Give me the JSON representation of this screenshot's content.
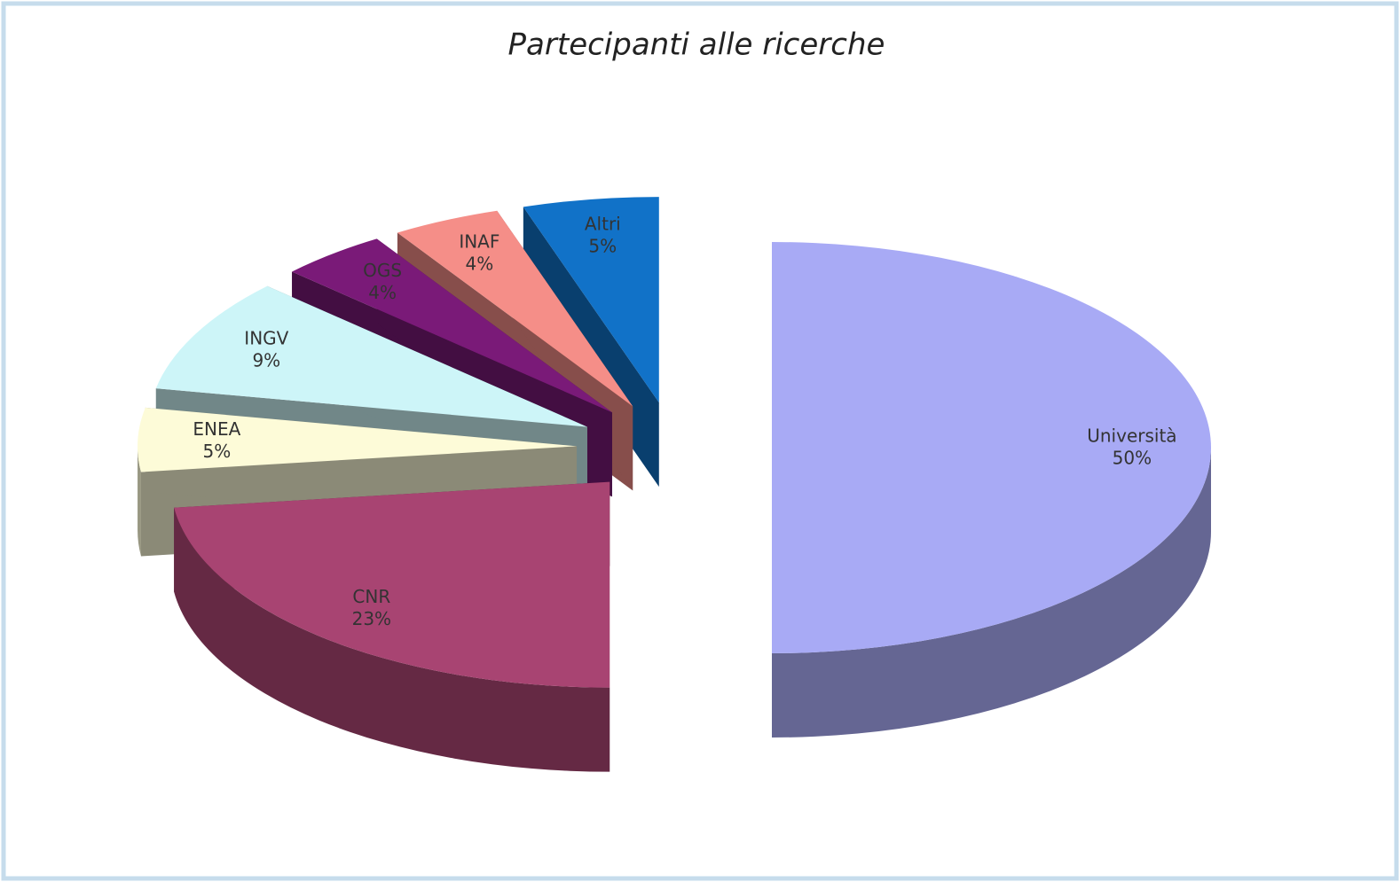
{
  "chart_data": {
    "type": "pie",
    "title": "Partecipanti alle ricerche",
    "categories": [
      "Università",
      "CNR",
      "ENEA",
      "INGV",
      "OGS",
      "INAF",
      "Altri"
    ],
    "values": [
      50,
      23,
      5,
      9,
      4,
      4,
      5
    ],
    "value_labels": [
      "50%",
      "23%",
      "5%",
      "9%",
      "4%",
      "4%",
      "5%"
    ],
    "colors": [
      "#a8aaf5",
      "#a84472",
      "#fdfbd8",
      "#cdf5f8",
      "#7a1a78",
      "#f58e88",
      "#1172c8"
    ]
  }
}
